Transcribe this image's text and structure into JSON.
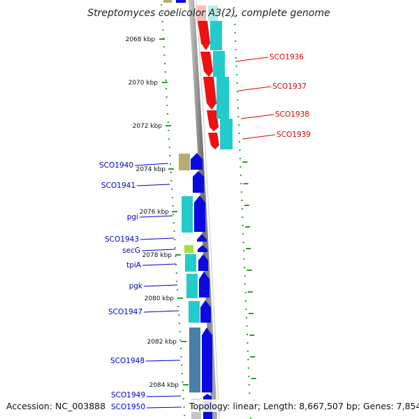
{
  "title": "Streptomyces coelicolor A3(2), complete genome",
  "footer": {
    "accession": "Accession: NC_003888",
    "topology": "Topology: linear; Length: 8,667,507 bp; Genes: 7,854"
  },
  "scale_ticks": [
    {
      "label": "2068 kbp"
    },
    {
      "label": "2070 kbp"
    },
    {
      "label": "2072 kbp"
    },
    {
      "label": "2074 kbp"
    },
    {
      "label": "2076 kbp"
    },
    {
      "label": "2078 kbp"
    },
    {
      "label": "2080 kbp"
    },
    {
      "label": "2082 kbp"
    },
    {
      "label": "2084 kbp"
    }
  ],
  "genes_forward_strand": [
    {
      "label": "SCO1936"
    },
    {
      "label": "SCO1937"
    },
    {
      "label": "SCO1938"
    },
    {
      "label": "SCO1939"
    }
  ],
  "genes_reverse_strand": [
    {
      "label": "SCO1940"
    },
    {
      "label": "SCO1941"
    },
    {
      "label": "pgi"
    },
    {
      "label": "SCO1943"
    },
    {
      "label": "secG"
    },
    {
      "label": "tpiA"
    },
    {
      "label": "pgk"
    },
    {
      "label": "SCO1947"
    },
    {
      "label": "SCO1948"
    },
    {
      "label": "SCO1949"
    },
    {
      "label": "SCO1950"
    }
  ],
  "colors": {
    "forward_gene": "#ee1111",
    "forward_label": "#dd0000",
    "reverse_gene": "#0a0ae0",
    "reverse_label": "#0000cc",
    "cog_cyan": "#22cccc",
    "cog_olive": "#b8ad70",
    "cog_lime": "#a6e040",
    "cog_steel": "#4a7fa8",
    "backbone": "#8c8c8c",
    "tick": "#2e9a2e"
  }
}
